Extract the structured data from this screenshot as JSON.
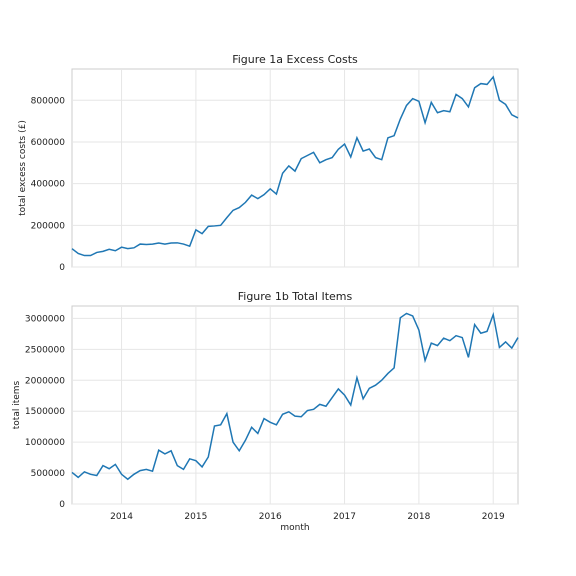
{
  "colors": {
    "line": "#1f77b4",
    "grid": "#e6e6e6",
    "spine": "#cccccc",
    "background": "#ffffff"
  },
  "chart_data": [
    {
      "type": "line",
      "title": "Figure 1a Excess Costs",
      "xlabel": "",
      "ylabel": "total excess costs (£)",
      "grid": true,
      "xlim": [
        "2013-05",
        "2019-05"
      ],
      "ylim": [
        0,
        950000
      ],
      "yticks": [
        0,
        200000,
        400000,
        600000,
        800000
      ],
      "ytick_labels": [
        "0",
        "200000",
        "400000",
        "600000",
        "800000"
      ],
      "xticks": [],
      "xtick_labels": [],
      "x": [
        "2013-05",
        "2013-06",
        "2013-07",
        "2013-08",
        "2013-09",
        "2013-10",
        "2013-11",
        "2013-12",
        "2014-01",
        "2014-02",
        "2014-03",
        "2014-04",
        "2014-05",
        "2014-06",
        "2014-07",
        "2014-08",
        "2014-09",
        "2014-10",
        "2014-11",
        "2014-12",
        "2015-01",
        "2015-02",
        "2015-03",
        "2015-04",
        "2015-05",
        "2015-06",
        "2015-07",
        "2015-08",
        "2015-09",
        "2015-10",
        "2015-11",
        "2015-12",
        "2016-01",
        "2016-02",
        "2016-03",
        "2016-04",
        "2016-05",
        "2016-06",
        "2016-07",
        "2016-08",
        "2016-09",
        "2016-10",
        "2016-11",
        "2016-12",
        "2017-01",
        "2017-02",
        "2017-03",
        "2017-04",
        "2017-05",
        "2017-06",
        "2017-07",
        "2017-08",
        "2017-09",
        "2017-10",
        "2017-11",
        "2017-12",
        "2018-01",
        "2018-02",
        "2018-03",
        "2018-04",
        "2018-05",
        "2018-06",
        "2018-07",
        "2018-08",
        "2018-09",
        "2018-10",
        "2018-11",
        "2018-12",
        "2019-01",
        "2019-02",
        "2019-03",
        "2019-04",
        "2019-05"
      ],
      "series": [
        {
          "values": [
            88000,
            65000,
            55000,
            55000,
            70000,
            75000,
            85000,
            78000,
            95000,
            88000,
            92000,
            110000,
            108000,
            110000,
            115000,
            110000,
            115000,
            116000,
            110000,
            100000,
            178000,
            160000,
            195000,
            197000,
            200000,
            237000,
            272000,
            285000,
            310000,
            345000,
            328000,
            347000,
            375000,
            350000,
            450000,
            485000,
            460000,
            520000,
            535000,
            550000,
            500000,
            515000,
            525000,
            565000,
            590000,
            528000,
            620000,
            556000,
            566000,
            525000,
            515000,
            620000,
            630000,
            710000,
            775000,
            808000,
            795000,
            692000,
            790000,
            740000,
            750000,
            745000,
            828000,
            808000,
            768000,
            860000,
            880000,
            876000,
            912000,
            800000,
            780000,
            730000,
            715000
          ]
        }
      ]
    },
    {
      "type": "line",
      "title": "Figure 1b Total Items",
      "xlabel": "month",
      "ylabel": "total items",
      "grid": true,
      "xlim": [
        "2013-05",
        "2019-05"
      ],
      "ylim": [
        0,
        3200000
      ],
      "yticks": [
        0,
        500000,
        1000000,
        1500000,
        2000000,
        2500000,
        3000000
      ],
      "ytick_labels": [
        "0",
        "500000",
        "1000000",
        "1500000",
        "2000000",
        "2500000",
        "3000000"
      ],
      "xticks": [
        "2014-01",
        "2015-01",
        "2016-01",
        "2017-01",
        "2018-01",
        "2019-01"
      ],
      "xtick_labels": [
        "2014",
        "2015",
        "2016",
        "2017",
        "2018",
        "2019"
      ],
      "x": [
        "2013-05",
        "2013-06",
        "2013-07",
        "2013-08",
        "2013-09",
        "2013-10",
        "2013-11",
        "2013-12",
        "2014-01",
        "2014-02",
        "2014-03",
        "2014-04",
        "2014-05",
        "2014-06",
        "2014-07",
        "2014-08",
        "2014-09",
        "2014-10",
        "2014-11",
        "2014-12",
        "2015-01",
        "2015-02",
        "2015-03",
        "2015-04",
        "2015-05",
        "2015-06",
        "2015-07",
        "2015-08",
        "2015-09",
        "2015-10",
        "2015-11",
        "2015-12",
        "2016-01",
        "2016-02",
        "2016-03",
        "2016-04",
        "2016-05",
        "2016-06",
        "2016-07",
        "2016-08",
        "2016-09",
        "2016-10",
        "2016-11",
        "2016-12",
        "2017-01",
        "2017-02",
        "2017-03",
        "2017-04",
        "2017-05",
        "2017-06",
        "2017-07",
        "2017-08",
        "2017-09",
        "2017-10",
        "2017-11",
        "2017-12",
        "2018-01",
        "2018-02",
        "2018-03",
        "2018-04",
        "2018-05",
        "2018-06",
        "2018-07",
        "2018-08",
        "2018-09",
        "2018-10",
        "2018-11",
        "2018-12",
        "2019-01",
        "2019-02",
        "2019-03",
        "2019-04",
        "2019-05"
      ],
      "series": [
        {
          "values": [
            510000,
            430000,
            520000,
            480000,
            460000,
            620000,
            570000,
            640000,
            480000,
            400000,
            480000,
            540000,
            560000,
            530000,
            870000,
            810000,
            860000,
            620000,
            560000,
            730000,
            700000,
            600000,
            760000,
            1260000,
            1280000,
            1460000,
            1000000,
            860000,
            1030000,
            1240000,
            1140000,
            1380000,
            1320000,
            1280000,
            1450000,
            1490000,
            1420000,
            1410000,
            1510000,
            1530000,
            1610000,
            1580000,
            1720000,
            1860000,
            1760000,
            1600000,
            2040000,
            1700000,
            1870000,
            1920000,
            2000000,
            2110000,
            2200000,
            3010000,
            3080000,
            3040000,
            2810000,
            2320000,
            2600000,
            2560000,
            2680000,
            2640000,
            2720000,
            2690000,
            2370000,
            2900000,
            2760000,
            2790000,
            3060000,
            2530000,
            2620000,
            2520000,
            2690000
          ]
        }
      ]
    }
  ]
}
